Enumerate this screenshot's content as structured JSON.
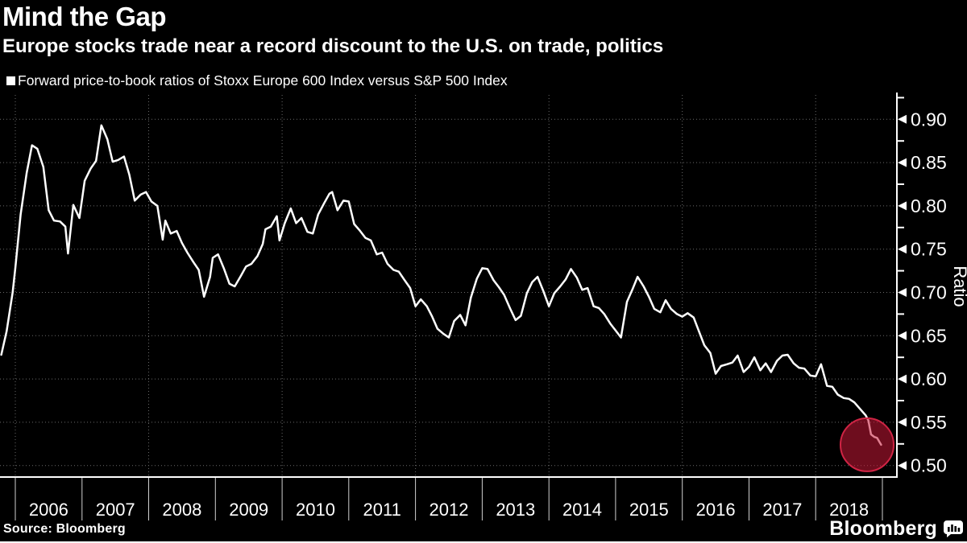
{
  "header": {
    "title": "Mind the Gap",
    "subtitle": "Europe stocks trade near a record discount to the U.S. on trade, politics"
  },
  "legend": {
    "label": "Forward price-to-book ratios of Stoxx Europe 600 Index versus S&P 500 Index"
  },
  "footer": {
    "source": "Source: Bloomberg",
    "brand": "Bloomberg"
  },
  "colors": {
    "background": "#000000",
    "text": "#ffffff",
    "line": "#ffffff",
    "grid": "#6a6a6a",
    "axis": "#ffffff",
    "x_tick": "#d0d0d0",
    "highlight_fill": "rgba(200,24,54,0.55)",
    "highlight_stroke": "#cf2444"
  },
  "chart_data": {
    "type": "line",
    "title": "Mind the Gap",
    "subtitle": "Europe stocks trade near a record discount to the U.S. on trade, politics",
    "xlabel": "",
    "ylabel": "Ratio",
    "legend_position": "top-left",
    "grid": "dotted",
    "xlim": [
      2005.77,
      2019.22
    ],
    "ylim": [
      0.487,
      0.928
    ],
    "y_ticks": [
      0.9,
      0.85,
      0.8,
      0.75,
      0.7,
      0.65,
      0.6,
      0.55,
      0.5
    ],
    "y_tick_labels": [
      "0.90",
      "0.85",
      "0.80",
      "0.75",
      "0.70",
      "0.65",
      "0.60",
      "0.55",
      "0.50"
    ],
    "y_minor_ticks": [
      0.925,
      0.875,
      0.825,
      0.775,
      0.725,
      0.675,
      0.625,
      0.575,
      0.525
    ],
    "x_ticks": [
      2006,
      2007,
      2008,
      2009,
      2010,
      2011,
      2012,
      2013,
      2014,
      2015,
      2016,
      2017,
      2018,
      2019
    ],
    "x_tick_labels": [
      "2006",
      "2007",
      "2008",
      "2009",
      "2010",
      "2011",
      "2012",
      "2013",
      "2014",
      "2015",
      "2016",
      "2017",
      "2018"
    ],
    "x_grid_years": [
      2006,
      2008,
      2010,
      2012,
      2014,
      2016,
      2018
    ],
    "annotation": {
      "highlight_circle": {
        "center_x": 2018.77,
        "center_value": 0.524,
        "radius_px": 33
      }
    },
    "series": [
      {
        "name": "Forward price-to-book ratio, Stoxx Europe 600 vs S&P 500",
        "color": "#ffffff",
        "points": [
          [
            2005.79,
            0.628
          ],
          [
            2005.87,
            0.655
          ],
          [
            2005.96,
            0.7
          ],
          [
            2006.0,
            0.728
          ],
          [
            2006.08,
            0.79
          ],
          [
            2006.17,
            0.838
          ],
          [
            2006.25,
            0.87
          ],
          [
            2006.33,
            0.866
          ],
          [
            2006.42,
            0.845
          ],
          [
            2006.5,
            0.795
          ],
          [
            2006.58,
            0.783
          ],
          [
            2006.67,
            0.782
          ],
          [
            2006.75,
            0.776
          ],
          [
            2006.79,
            0.745
          ],
          [
            2006.87,
            0.801
          ],
          [
            2006.96,
            0.786
          ],
          [
            2007.04,
            0.829
          ],
          [
            2007.13,
            0.843
          ],
          [
            2007.21,
            0.852
          ],
          [
            2007.29,
            0.893
          ],
          [
            2007.38,
            0.877
          ],
          [
            2007.46,
            0.851
          ],
          [
            2007.54,
            0.853
          ],
          [
            2007.63,
            0.857
          ],
          [
            2007.71,
            0.836
          ],
          [
            2007.79,
            0.806
          ],
          [
            2007.88,
            0.813
          ],
          [
            2007.96,
            0.816
          ],
          [
            2008.04,
            0.805
          ],
          [
            2008.13,
            0.8
          ],
          [
            2008.21,
            0.761
          ],
          [
            2008.25,
            0.783
          ],
          [
            2008.33,
            0.768
          ],
          [
            2008.42,
            0.771
          ],
          [
            2008.5,
            0.757
          ],
          [
            2008.58,
            0.746
          ],
          [
            2008.67,
            0.735
          ],
          [
            2008.75,
            0.726
          ],
          [
            2008.83,
            0.695
          ],
          [
            2008.92,
            0.718
          ],
          [
            2008.96,
            0.74
          ],
          [
            2009.04,
            0.744
          ],
          [
            2009.13,
            0.727
          ],
          [
            2009.21,
            0.71
          ],
          [
            2009.29,
            0.707
          ],
          [
            2009.38,
            0.719
          ],
          [
            2009.46,
            0.73
          ],
          [
            2009.54,
            0.733
          ],
          [
            2009.63,
            0.742
          ],
          [
            2009.71,
            0.756
          ],
          [
            2009.75,
            0.773
          ],
          [
            2009.83,
            0.776
          ],
          [
            2009.92,
            0.788
          ],
          [
            2009.96,
            0.76
          ],
          [
            2010.04,
            0.78
          ],
          [
            2010.13,
            0.797
          ],
          [
            2010.21,
            0.78
          ],
          [
            2010.29,
            0.786
          ],
          [
            2010.38,
            0.77
          ],
          [
            2010.46,
            0.768
          ],
          [
            2010.54,
            0.79
          ],
          [
            2010.63,
            0.803
          ],
          [
            2010.71,
            0.814
          ],
          [
            2010.75,
            0.816
          ],
          [
            2010.83,
            0.795
          ],
          [
            2010.92,
            0.806
          ],
          [
            2011.0,
            0.805
          ],
          [
            2011.08,
            0.779
          ],
          [
            2011.17,
            0.771
          ],
          [
            2011.25,
            0.763
          ],
          [
            2011.33,
            0.76
          ],
          [
            2011.42,
            0.744
          ],
          [
            2011.5,
            0.746
          ],
          [
            2011.58,
            0.733
          ],
          [
            2011.67,
            0.726
          ],
          [
            2011.75,
            0.724
          ],
          [
            2011.83,
            0.715
          ],
          [
            2011.92,
            0.705
          ],
          [
            2012.0,
            0.684
          ],
          [
            2012.08,
            0.692
          ],
          [
            2012.17,
            0.684
          ],
          [
            2012.25,
            0.672
          ],
          [
            2012.33,
            0.658
          ],
          [
            2012.42,
            0.652
          ],
          [
            2012.5,
            0.648
          ],
          [
            2012.58,
            0.667
          ],
          [
            2012.67,
            0.674
          ],
          [
            2012.75,
            0.662
          ],
          [
            2012.83,
            0.694
          ],
          [
            2012.92,
            0.716
          ],
          [
            2013.0,
            0.728
          ],
          [
            2013.08,
            0.727
          ],
          [
            2013.17,
            0.714
          ],
          [
            2013.25,
            0.706
          ],
          [
            2013.33,
            0.697
          ],
          [
            2013.42,
            0.681
          ],
          [
            2013.5,
            0.668
          ],
          [
            2013.58,
            0.673
          ],
          [
            2013.67,
            0.699
          ],
          [
            2013.75,
            0.712
          ],
          [
            2013.83,
            0.718
          ],
          [
            2013.92,
            0.701
          ],
          [
            2014.0,
            0.684
          ],
          [
            2014.08,
            0.699
          ],
          [
            2014.17,
            0.707
          ],
          [
            2014.25,
            0.715
          ],
          [
            2014.33,
            0.727
          ],
          [
            2014.42,
            0.717
          ],
          [
            2014.5,
            0.703
          ],
          [
            2014.58,
            0.705
          ],
          [
            2014.67,
            0.684
          ],
          [
            2014.75,
            0.682
          ],
          [
            2014.83,
            0.675
          ],
          [
            2014.92,
            0.664
          ],
          [
            2015.0,
            0.656
          ],
          [
            2015.08,
            0.648
          ],
          [
            2015.17,
            0.689
          ],
          [
            2015.25,
            0.703
          ],
          [
            2015.33,
            0.718
          ],
          [
            2015.42,
            0.707
          ],
          [
            2015.5,
            0.695
          ],
          [
            2015.58,
            0.681
          ],
          [
            2015.67,
            0.677
          ],
          [
            2015.75,
            0.691
          ],
          [
            2015.83,
            0.681
          ],
          [
            2015.92,
            0.675
          ],
          [
            2016.0,
            0.672
          ],
          [
            2016.08,
            0.676
          ],
          [
            2016.17,
            0.671
          ],
          [
            2016.25,
            0.655
          ],
          [
            2016.33,
            0.639
          ],
          [
            2016.42,
            0.63
          ],
          [
            2016.5,
            0.606
          ],
          [
            2016.58,
            0.615
          ],
          [
            2016.67,
            0.617
          ],
          [
            2016.75,
            0.619
          ],
          [
            2016.83,
            0.627
          ],
          [
            2016.92,
            0.608
          ],
          [
            2017.0,
            0.614
          ],
          [
            2017.08,
            0.625
          ],
          [
            2017.17,
            0.61
          ],
          [
            2017.25,
            0.618
          ],
          [
            2017.33,
            0.608
          ],
          [
            2017.42,
            0.621
          ],
          [
            2017.5,
            0.627
          ],
          [
            2017.58,
            0.628
          ],
          [
            2017.67,
            0.618
          ],
          [
            2017.75,
            0.613
          ],
          [
            2017.83,
            0.612
          ],
          [
            2017.92,
            0.604
          ],
          [
            2018.0,
            0.603
          ],
          [
            2018.08,
            0.617
          ],
          [
            2018.17,
            0.592
          ],
          [
            2018.25,
            0.591
          ],
          [
            2018.33,
            0.582
          ],
          [
            2018.42,
            0.578
          ],
          [
            2018.5,
            0.577
          ],
          [
            2018.58,
            0.573
          ],
          [
            2018.67,
            0.565
          ],
          [
            2018.75,
            0.558
          ],
          [
            2018.79,
            0.552
          ],
          [
            2018.83,
            0.536
          ],
          [
            2018.88,
            0.533
          ],
          [
            2018.92,
            0.532
          ],
          [
            2018.95,
            0.528
          ],
          [
            2018.98,
            0.524
          ]
        ]
      }
    ]
  }
}
